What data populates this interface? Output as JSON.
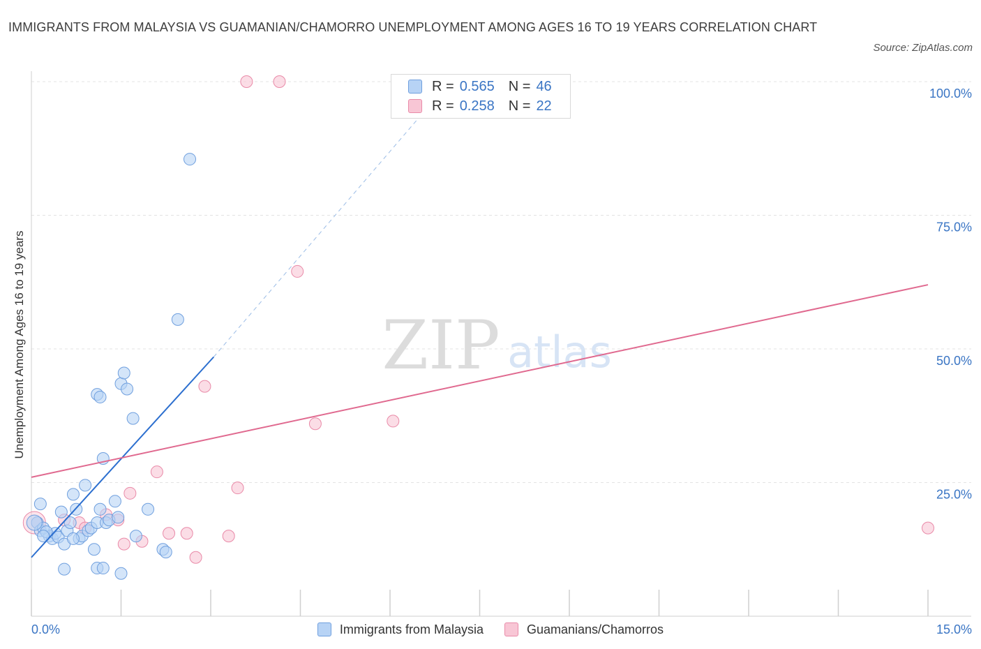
{
  "header": {
    "title": "IMMIGRANTS FROM MALAYSIA VS GUAMANIAN/CHAMORRO UNEMPLOYMENT AMONG AGES 16 TO 19 YEARS CORRELATION CHART",
    "source": "Source: ZipAtlas.com"
  },
  "watermark": {
    "zip": "ZIP",
    "atlas": "atlas"
  },
  "legend_top": {
    "rows": [
      {
        "r_label": "R =",
        "r_value": "0.565",
        "n_label": "N =",
        "n_value": "46"
      },
      {
        "r_label": "R =",
        "r_value": "0.258",
        "n_label": "N =",
        "n_value": "22"
      }
    ]
  },
  "colors": {
    "blue_fill": "#b7d3f5",
    "blue_stroke": "#6f9fde",
    "blue_line": "#2c6fcf",
    "pink_fill": "#f8c6d5",
    "pink_stroke": "#e98aa8",
    "pink_line": "#e0698f",
    "axis_text": "#3a75c4",
    "grid": "#e3e3e3"
  },
  "chart_data": {
    "type": "scatter",
    "title": "IMMIGRANTS FROM MALAYSIA VS GUAMANIAN/CHAMORRO UNEMPLOYMENT AMONG AGES 16 TO 19 YEARS CORRELATION CHART",
    "xlabel": "",
    "ylabel": "Unemployment Among Ages 16 to 19 years",
    "xlim": [
      0,
      15
    ],
    "ylim": [
      0,
      100
    ],
    "x_tick_labels": [
      "0.0%",
      "15.0%"
    ],
    "y_tick_labels": [
      "100.0%",
      "75.0%",
      "50.0%",
      "25.0%"
    ],
    "y_ticks": [
      100,
      75,
      50,
      25
    ],
    "grid": true,
    "legend_position": "bottom",
    "series": [
      {
        "name": "Immigrants from Malaysia",
        "r": 0.565,
        "n": 46,
        "points": [
          [
            0.1,
            17.5
          ],
          [
            0.15,
            16
          ],
          [
            0.3,
            15
          ],
          [
            0.35,
            14.5
          ],
          [
            0.4,
            15.5
          ],
          [
            0.45,
            14.8
          ],
          [
            0.2,
            16.5
          ],
          [
            0.25,
            15.8
          ],
          [
            0.5,
            19.5
          ],
          [
            0.6,
            16
          ],
          [
            0.65,
            17.5
          ],
          [
            0.55,
            13.5
          ],
          [
            0.7,
            22.8
          ],
          [
            0.75,
            20
          ],
          [
            0.8,
            14.5
          ],
          [
            0.85,
            15
          ],
          [
            0.9,
            24.5
          ],
          [
            0.95,
            16
          ],
          [
            1.0,
            16.5
          ],
          [
            1.05,
            12.5
          ],
          [
            1.1,
            17.5
          ],
          [
            1.15,
            20
          ],
          [
            1.2,
            29.5
          ],
          [
            1.25,
            17.5
          ],
          [
            1.3,
            18
          ],
          [
            1.4,
            21.5
          ],
          [
            1.45,
            18.5
          ],
          [
            1.5,
            43.5
          ],
          [
            1.1,
            9
          ],
          [
            1.2,
            9
          ],
          [
            0.55,
            8.8
          ],
          [
            1.1,
            41.5
          ],
          [
            1.15,
            41
          ],
          [
            1.55,
            45.5
          ],
          [
            1.6,
            42.5
          ],
          [
            1.7,
            37
          ],
          [
            1.75,
            15
          ],
          [
            1.95,
            20
          ],
          [
            2.2,
            12.5
          ],
          [
            2.25,
            12
          ],
          [
            1.5,
            8
          ],
          [
            2.45,
            55.5
          ],
          [
            2.65,
            85.5
          ],
          [
            0.15,
            21
          ],
          [
            0.2,
            15
          ],
          [
            0.7,
            14.5
          ]
        ],
        "trend": {
          "x": [
            0,
            3.05
          ],
          "y": [
            11,
            48.5
          ],
          "dashed_to": [
            7.0,
            100
          ]
        }
      },
      {
        "name": "Guamanians/Chamorros",
        "r": 0.258,
        "n": 22,
        "points": [
          [
            0.1,
            17.5
          ],
          [
            0.55,
            18
          ],
          [
            0.8,
            17.5
          ],
          [
            0.9,
            16.5
          ],
          [
            1.25,
            19
          ],
          [
            1.45,
            18
          ],
          [
            1.65,
            23
          ],
          [
            1.55,
            13.5
          ],
          [
            1.85,
            14
          ],
          [
            2.1,
            27
          ],
          [
            2.3,
            15.5
          ],
          [
            2.6,
            15.5
          ],
          [
            2.75,
            11
          ],
          [
            2.9,
            43
          ],
          [
            3.3,
            15
          ],
          [
            3.45,
            24
          ],
          [
            3.6,
            100
          ],
          [
            4.15,
            100
          ],
          [
            4.45,
            64.5
          ],
          [
            4.75,
            36
          ],
          [
            6.05,
            36.5
          ],
          [
            15.0,
            16.5
          ]
        ],
        "trend": {
          "x": [
            0,
            15.0
          ],
          "y": [
            26,
            62
          ]
        }
      }
    ]
  }
}
